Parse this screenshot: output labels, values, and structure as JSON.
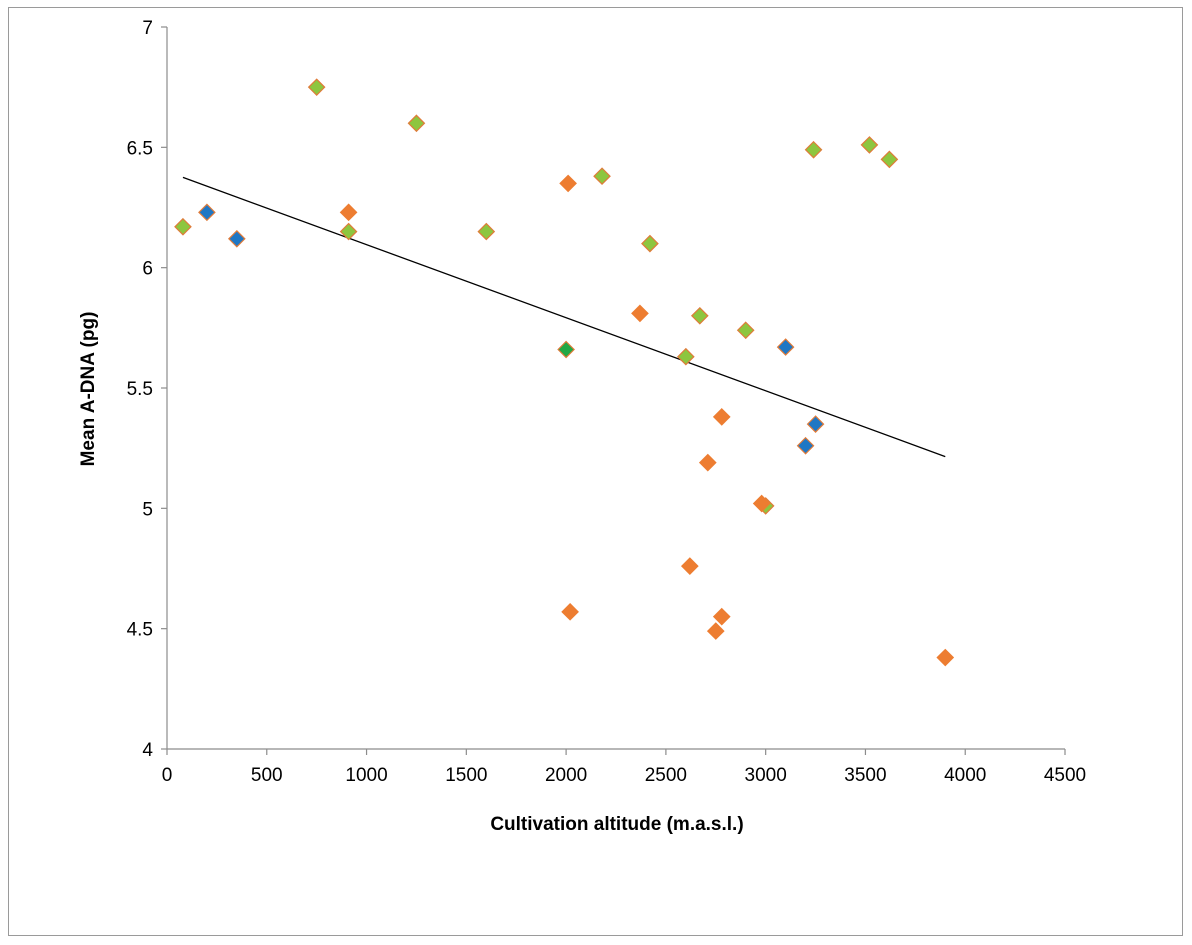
{
  "chart_data": {
    "type": "scatter",
    "title": "",
    "xlabel": "Cultivation altitude (m.a.s.l.)",
    "ylabel": "Mean A-DNA (pg)",
    "xlim": [
      0,
      4500
    ],
    "ylim": [
      4,
      7
    ],
    "x_ticks": [
      "0",
      "500",
      "1000",
      "1500",
      "2000",
      "2500",
      "3000",
      "3500",
      "4000",
      "4500"
    ],
    "y_ticks": [
      "4",
      "4.5",
      "5",
      "5.5",
      "6",
      "6.5",
      "7"
    ],
    "grid": false,
    "legend": "none",
    "marker": "diamond",
    "series": [
      {
        "color": "#8dc63f",
        "edge_color": "#e07b39",
        "points": [
          [
            80,
            6.17
          ],
          [
            750,
            6.75
          ],
          [
            910,
            6.15
          ],
          [
            1250,
            6.6
          ],
          [
            1600,
            6.15
          ],
          [
            2180,
            6.38
          ],
          [
            2420,
            6.1
          ],
          [
            2600,
            5.63
          ],
          [
            2670,
            5.8
          ],
          [
            2900,
            5.74
          ],
          [
            3000,
            5.01
          ],
          [
            3240,
            6.49
          ],
          [
            3520,
            6.51
          ],
          [
            3620,
            6.45
          ]
        ]
      },
      {
        "color": "#ed7d31",
        "edge_color": "#ed7d31",
        "points": [
          [
            910,
            6.23
          ],
          [
            2010,
            6.35
          ],
          [
            2020,
            4.57
          ],
          [
            2370,
            5.81
          ],
          [
            2620,
            4.76
          ],
          [
            2710,
            5.19
          ],
          [
            2750,
            4.49
          ],
          [
            2780,
            5.38
          ],
          [
            2780,
            4.55
          ],
          [
            2980,
            5.02
          ],
          [
            3900,
            4.38
          ]
        ]
      },
      {
        "color": "#1f77c4",
        "edge_color": "#e07b39",
        "points": [
          [
            200,
            6.23
          ],
          [
            350,
            6.12
          ],
          [
            3100,
            5.67
          ],
          [
            3200,
            5.26
          ],
          [
            3250,
            5.35
          ]
        ]
      },
      {
        "color": "#22a845",
        "edge_color": "#e07b39",
        "points": [
          [
            2000,
            5.66
          ]
        ]
      }
    ],
    "trendline": {
      "type": "linear",
      "color": "#000000",
      "x_start": 80,
      "y_start": 6.375,
      "x_end": 3900,
      "y_end": 5.215
    }
  }
}
